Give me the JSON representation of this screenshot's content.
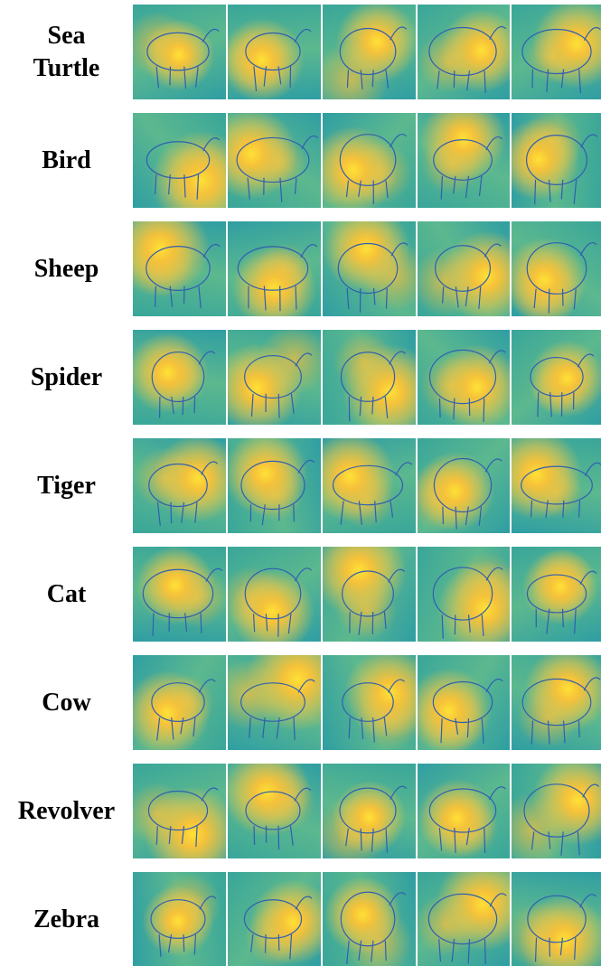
{
  "rows": [
    {
      "label": "Sea Turtle"
    },
    {
      "label": "Bird"
    },
    {
      "label": "Sheep"
    },
    {
      "label": "Spider"
    },
    {
      "label": "Tiger"
    },
    {
      "label": "Cat"
    },
    {
      "label": "Cow"
    },
    {
      "label": "Revolver"
    },
    {
      "label": "Zebra"
    }
  ]
}
